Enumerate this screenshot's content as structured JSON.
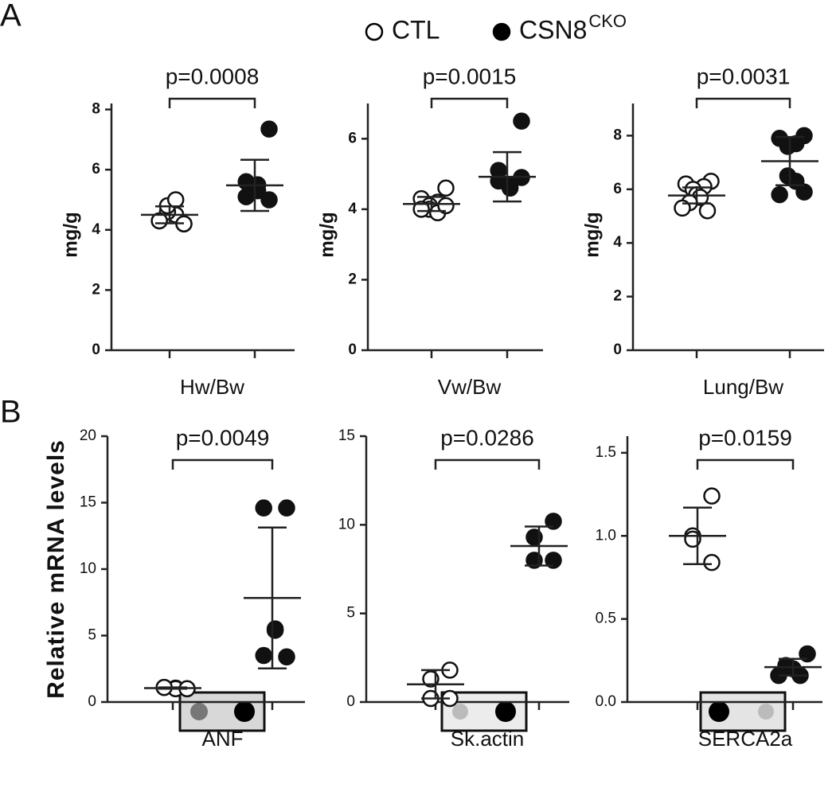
{
  "panel_labels": [
    "A",
    "B"
  ],
  "legend": [
    {
      "name": "CTL",
      "marker": "open"
    },
    {
      "name": "CSN8",
      "superscript": "CKO",
      "marker": "filled"
    }
  ],
  "chart_data": [
    {
      "type": "scatter",
      "ylabel": "mg/g",
      "xlabel": "Hw/Bw",
      "annotation": "p=0.0008",
      "ylim": [
        0,
        8.2
      ],
      "yticks": [
        0,
        2,
        4,
        6,
        8
      ],
      "series": [
        {
          "marker": "open",
          "values": [
            4.2,
            4.3,
            4.5,
            4.6,
            4.8,
            5.0,
            4.3,
            4.2
          ],
          "mean": 4.5,
          "sd": 0.28
        },
        {
          "marker": "filled",
          "values": [
            7.35,
            5.6,
            5.5,
            5.3,
            5.1,
            5.0
          ],
          "mean": 5.48,
          "sd": 0.85
        }
      ]
    },
    {
      "type": "scatter",
      "ylabel": "mg/g",
      "xlabel": "Vw/Bw",
      "annotation": "p=0.0015",
      "ylim": [
        0,
        7
      ],
      "yticks": [
        0,
        2,
        4,
        6
      ],
      "series": [
        {
          "marker": "open",
          "values": [
            4.6,
            4.3,
            4.2,
            4.1,
            4.0,
            3.9,
            4.0,
            4.1
          ],
          "mean": 4.15,
          "sd": 0.2
        },
        {
          "marker": "filled",
          "values": [
            6.5,
            5.1,
            4.7,
            4.6,
            4.8,
            4.9
          ],
          "mean": 4.92,
          "sd": 0.7
        }
      ]
    },
    {
      "type": "scatter",
      "ylabel": "mg/g",
      "xlabel": "Lung/Bw",
      "annotation": "p=0.0031",
      "ylim": [
        0,
        9.2
      ],
      "yticks": [
        0,
        2,
        4,
        6,
        8
      ],
      "series": [
        {
          "marker": "open",
          "values": [
            6.3,
            6.2,
            6.1,
            6.0,
            5.8,
            5.7,
            5.5,
            5.2,
            5.3
          ],
          "mean": 5.77,
          "sd": 0.3
        },
        {
          "marker": "filled",
          "values": [
            8.0,
            7.9,
            7.7,
            7.6,
            6.5,
            6.3,
            5.8,
            5.9
          ],
          "mean": 7.05,
          "sd": 0.9
        }
      ]
    },
    {
      "type": "scatter",
      "ylabel": "Relative mRNA levels",
      "xlabel": "ANF",
      "annotation": "p=0.0049",
      "ylim": [
        0,
        20
      ],
      "yticks": [
        0,
        5,
        10,
        15,
        20
      ],
      "series": [
        {
          "marker": "open",
          "values": [
            1.0,
            1.1,
            1.05,
            1.0,
            1.1,
            1.0
          ],
          "mean": 1.05,
          "sd": 0.05
        },
        {
          "marker": "filled",
          "values": [
            14.6,
            14.6,
            5.5,
            5.4,
            3.5,
            3.4
          ],
          "mean": 7.83,
          "sd": 5.3
        }
      ]
    },
    {
      "type": "scatter",
      "xlabel": "Sk.actin",
      "annotation": "p=0.0286",
      "ylim": [
        0,
        15
      ],
      "yticks": [
        0,
        5,
        10,
        15
      ],
      "series": [
        {
          "marker": "open",
          "values": [
            1.8,
            1.3,
            0.2,
            0.2
          ],
          "mean": 1.0,
          "sd": 0.8
        },
        {
          "marker": "filled",
          "values": [
            10.2,
            9.3,
            8.0,
            8.0
          ],
          "mean": 8.8,
          "sd": 1.1
        }
      ]
    },
    {
      "type": "scatter",
      "xlabel": "SERCA2a",
      "annotation": "p=0.0159",
      "ylim": [
        0,
        1.6
      ],
      "yticks": [
        {
          "value": 0,
          "label": "0.0"
        },
        0.5,
        {
          "value": 1,
          "label": "1.0"
        },
        1.5
      ],
      "series": [
        {
          "marker": "open",
          "values": [
            1.24,
            1.0,
            0.98,
            0.84
          ],
          "mean": 1.0,
          "sd": 0.17
        },
        {
          "marker": "filled",
          "values": [
            0.29,
            0.22,
            0.2,
            0.16,
            0.16
          ],
          "mean": 0.21,
          "sd": 0.05
        }
      ]
    }
  ]
}
